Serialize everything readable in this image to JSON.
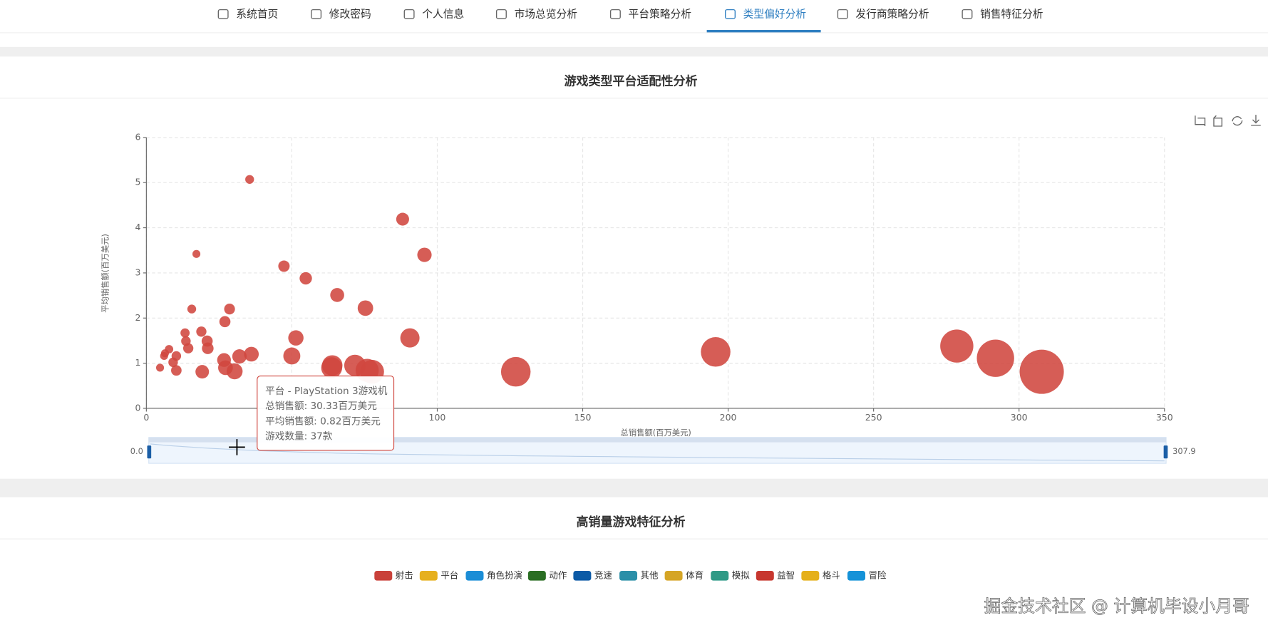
{
  "nav": {
    "items": [
      "系统首页",
      "修改密码",
      "个人信息",
      "市场总览分析",
      "平台策略分析",
      "类型偏好分析",
      "发行商策略分析",
      "销售特征分析"
    ],
    "active": 5
  },
  "chart_data": [
    {
      "type": "scatter",
      "title": "游戏类型平台适配性分析",
      "x_label": "总销售额(百万美元)",
      "y_label": "平均销售额(百万美元)",
      "color": "#d0473f",
      "xlim": [
        0,
        350
      ],
      "ylim": [
        0,
        6
      ],
      "xticks": [
        0,
        50,
        100,
        150,
        200,
        250,
        300,
        350
      ],
      "yticks": [
        0,
        1,
        2,
        3,
        4,
        5,
        6
      ],
      "grid": true,
      "x": [
        307.8,
        291.9,
        278.6,
        195.7,
        127.0,
        77.6,
        75.9,
        71.7,
        63.9,
        63.7,
        90.6,
        75.3,
        65.6,
        51.4,
        50.0,
        54.8,
        47.3,
        36.1,
        32.0,
        30.33,
        27.2,
        26.7,
        21.1,
        20.9,
        19.2,
        28.6,
        27.0,
        18.9,
        95.6,
        88.1,
        35.5,
        17.2,
        15.6,
        14.4,
        13.6,
        13.3,
        10.3,
        10.3,
        9.2,
        7.8,
        6.4,
        6.1,
        4.7
      ],
      "values": [
        0.81,
        1.11,
        1.38,
        1.25,
        0.81,
        0.81,
        0.84,
        0.95,
        0.95,
        0.9,
        1.56,
        2.22,
        2.51,
        1.56,
        1.16,
        2.88,
        3.15,
        1.2,
        1.15,
        0.82,
        0.9,
        1.07,
        1.33,
        1.49,
        0.81,
        2.2,
        1.92,
        1.7,
        3.4,
        4.19,
        5.07,
        3.42,
        2.2,
        1.33,
        1.49,
        1.67,
        1.16,
        0.84,
        1.02,
        1.31,
        1.22,
        1.16,
        0.9
      ],
      "sizes": [
        380,
        263,
        202,
        157,
        157,
        96,
        90,
        75,
        67,
        71,
        58,
        34,
        26,
        33,
        43,
        19,
        15,
        30,
        28,
        37,
        30,
        25,
        16,
        14,
        24,
        13,
        14,
        11,
        28,
        21,
        7,
        5,
        7,
        11,
        9,
        8,
        9,
        12,
        9,
        6,
        5,
        5,
        5
      ],
      "datazoom": {
        "start_label": "0.0",
        "end_label": "307.9"
      },
      "tooltip": [
        "平台 - PlayStation 3游戏机",
        "总销售额: 30.33百万美元",
        "平均销售额: 0.82百万美元",
        "游戏数量: 37款"
      ]
    },
    {
      "type": "legend-only",
      "title": "高销量游戏特征分析",
      "series": [
        {
          "name": "射击",
          "color": "#c9413a"
        },
        {
          "name": "平台",
          "color": "#e6b01e"
        },
        {
          "name": "角色扮演",
          "color": "#1b8dd6"
        },
        {
          "name": "动作",
          "color": "#2a6e23"
        },
        {
          "name": "竞速",
          "color": "#0c5aa6"
        },
        {
          "name": "其他",
          "color": "#2b8fa8"
        },
        {
          "name": "体育",
          "color": "#d5a526"
        },
        {
          "name": "模拟",
          "color": "#2f9a86"
        },
        {
          "name": "益智",
          "color": "#c7372f"
        },
        {
          "name": "格斗",
          "color": "#e5b01a"
        },
        {
          "name": "冒险",
          "color": "#1592d8"
        }
      ]
    }
  ],
  "watermark": "掘金技术社区 @ 计算机毕设小月哥"
}
